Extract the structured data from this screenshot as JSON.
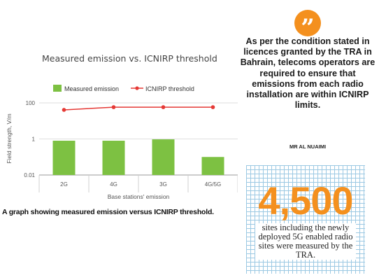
{
  "chart_data": {
    "type": "bar",
    "title": "Measured emission vs. ICNIRP threshold",
    "xlabel": "Base stations' emission",
    "ylabel": "Field strength, V/m",
    "categories": [
      "2G",
      "4G",
      "3G",
      "4G/5G"
    ],
    "yscale": "log",
    "ylim": [
      0.01,
      100
    ],
    "yticks": [
      0.01,
      1,
      100
    ],
    "ytick_labels": [
      "0.01",
      "1",
      "100"
    ],
    "grid": true,
    "legend": "top",
    "series": [
      {
        "name": "Measured emission",
        "kind": "bar",
        "color": "#7dc142",
        "values": [
          0.8,
          0.8,
          0.95,
          0.1
        ]
      },
      {
        "name": "ICNIRP threshold",
        "kind": "line",
        "color": "#e53935",
        "values": [
          41,
          58,
          58,
          58
        ]
      }
    ]
  },
  "caption": "A graph showing measured emission versus ICNIRP threshold.",
  "quote": {
    "icon": "quote-icon",
    "icon_glyph": "”",
    "accent_color": "#f4901e",
    "text": "As per the condition stated in licences granted by the TRA in Bahrain, telecoms operators are required to ensure that emissions from each radio installation are within ICNIRP limits.",
    "author": "MR AL NUAIMI"
  },
  "stat": {
    "number": "4,500",
    "text": "sites including the newly deployed 5G enabled radio sites were measured by the TRA."
  }
}
